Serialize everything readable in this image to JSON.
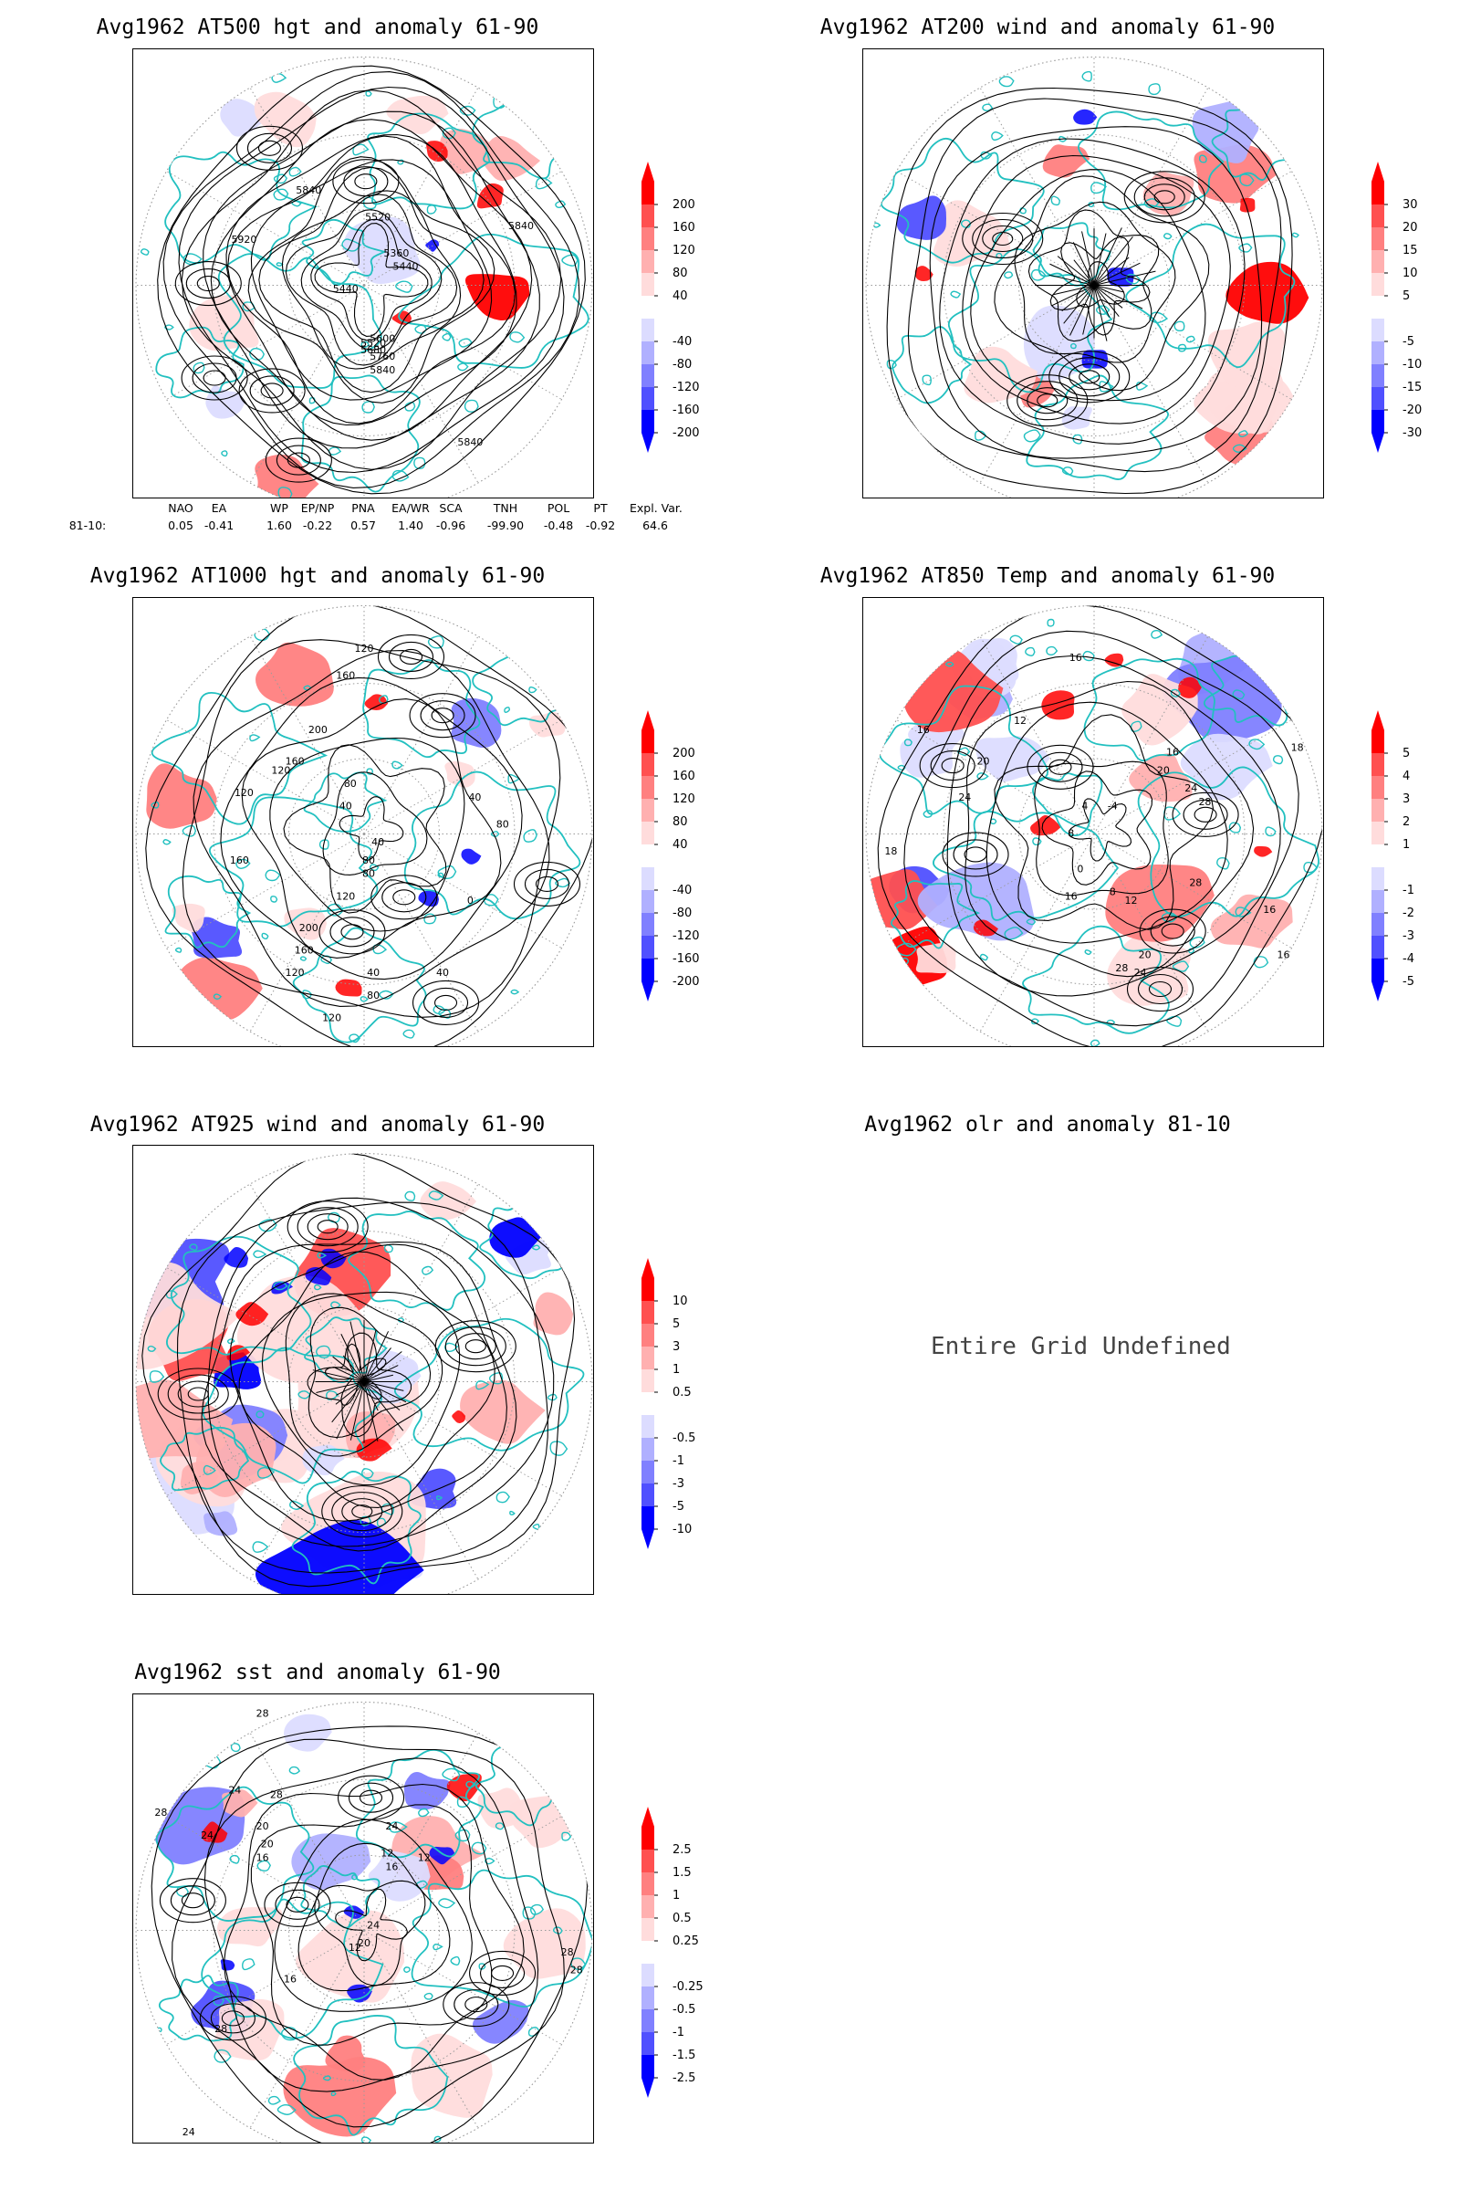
{
  "panels": [
    {
      "id": "p1",
      "title": "Avg1962 AT500 hgt and anomaly 61-90",
      "contour_labels": [
        "5840",
        "5920",
        "5520",
        "5360",
        "5440",
        "5440",
        "5600",
        "5760",
        "5840",
        "5840",
        "5840",
        "5520",
        "5680"
      ],
      "colorbar": [
        "200",
        "160",
        "120",
        "80",
        "40",
        "-40",
        "-80",
        "-120",
        "-160",
        "-200"
      ]
    },
    {
      "id": "p2",
      "title": "Avg1962 AT200 wind and anomaly 61-90",
      "contour_labels": [],
      "colorbar": [
        "30",
        "20",
        "15",
        "10",
        "5",
        "-5",
        "-10",
        "-15",
        "-20",
        "-30"
      ]
    },
    {
      "id": "p3",
      "title": "Avg1962 AT1000 hgt and anomaly 61-90",
      "contour_labels": [
        "120",
        "160",
        "200",
        "160",
        "120",
        "80",
        "40",
        "120",
        "40",
        "80",
        "40",
        "80",
        "160",
        "120",
        "80",
        "200",
        "160",
        "120",
        "40",
        "40",
        "80",
        "120",
        "0"
      ],
      "colorbar": [
        "200",
        "160",
        "120",
        "80",
        "40",
        "-40",
        "-80",
        "-120",
        "-160",
        "-200"
      ]
    },
    {
      "id": "p4",
      "title": "Avg1962 AT850 Temp and anomaly 61-90",
      "contour_labels": [
        "16",
        "16",
        "12",
        "20",
        "24",
        "16",
        "20",
        "18",
        "8",
        "4",
        "-4",
        "0",
        "24",
        "28",
        "8",
        "16",
        "12",
        "28",
        "20",
        "24",
        "28",
        "16",
        "18",
        "16"
      ],
      "colorbar": [
        "5",
        "4",
        "3",
        "2",
        "1",
        "-1",
        "-2",
        "-3",
        "-4",
        "-5"
      ]
    },
    {
      "id": "p5",
      "title": "Avg1962 AT925 wind and anomaly 61-90",
      "contour_labels": [],
      "colorbar": [
        "10",
        "5",
        "3",
        "1",
        "0.5",
        "-0.5",
        "-1",
        "-3",
        "-5",
        "-10"
      ]
    },
    {
      "id": "p6",
      "title": "Avg1962 olr and anomaly 81-10",
      "message": "Entire Grid Undefined"
    },
    {
      "id": "p7",
      "title": "Avg1962 sst and anomaly 61-90",
      "contour_labels": [
        "28",
        "28",
        "24",
        "20",
        "24",
        "20",
        "16",
        "12",
        "16",
        "12",
        "28",
        "24",
        "28",
        "16",
        "12",
        "20",
        "24",
        "28",
        "28",
        "24"
      ],
      "colorbar": [
        "2.5",
        "1.5",
        "1",
        "0.5",
        "0.25",
        "-0.25",
        "-0.5",
        "-1",
        "-1.5",
        "-2.5"
      ]
    }
  ],
  "colors": {
    "coast": "#22c0c0",
    "contour": "#000000",
    "grid": "#9a9a9a",
    "pos": [
      "#ff0000",
      "#ff5050",
      "#ff8080",
      "#ffb0b0",
      "#ffdcdc"
    ],
    "neg": [
      "#dcdcff",
      "#b0b0ff",
      "#8080ff",
      "#5050ff",
      "#0000ff"
    ]
  },
  "teleconnection": {
    "headers": [
      "NAO",
      "EA",
      "WP",
      "EP/NP",
      "PNA",
      "EA/WR",
      "SCA",
      "TNH",
      "POL",
      "PT",
      "Expl. Var."
    ],
    "row_label": "81-10:",
    "values": [
      "0.05",
      "-0.41",
      "1.60",
      "-0.22",
      "0.57",
      "1.40",
      "-0.96",
      "-99.90",
      "-0.48",
      "-0.92",
      "64.6"
    ]
  }
}
